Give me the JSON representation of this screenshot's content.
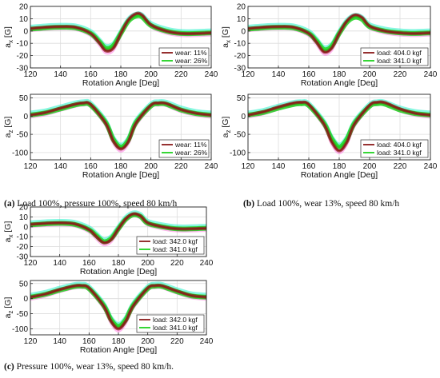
{
  "figure": {
    "captions": [
      {
        "letter": "(a)",
        "text": "Load 100%, pressure 100%, speed 80 km/h"
      },
      {
        "letter": "(b)",
        "text": "Load 100%, wear 13%, speed 80 km/h"
      },
      {
        "letter": "(c)",
        "text": "Pressure 100%, wear 13%, speed 80 km/h."
      }
    ]
  },
  "colors": {
    "dark": "#8b1a1a",
    "green": "#1fd21f",
    "cyan": "#27f0c8",
    "magenta": "#ff4fd8"
  },
  "chart_data": [
    {
      "id": "a-ax",
      "type": "line",
      "xlabel": "Rotation Angle [Deg]",
      "ylabel_main": "a",
      "ylabel_sub": "x",
      "ylabel_unit": "[G]",
      "xlim": [
        120,
        240
      ],
      "ylim": [
        -30,
        20
      ],
      "xticks": [
        120,
        140,
        160,
        180,
        200,
        220,
        240
      ],
      "yticks": [
        -30,
        -20,
        -10,
        0,
        10,
        20
      ],
      "grid": true,
      "legend_position": "bottom-right",
      "series": [
        {
          "name": "wear: 11%",
          "color": "#8b1a1a",
          "x": [
            120,
            130,
            140,
            150,
            160,
            166,
            170,
            175,
            180,
            185,
            190,
            194,
            200,
            210,
            220,
            230,
            240
          ],
          "y": [
            2,
            3,
            3.5,
            3,
            -2,
            -10,
            -16,
            -14,
            -2,
            9,
            14,
            13,
            5,
            0,
            -2,
            -2,
            -1.5
          ]
        },
        {
          "name": "wear: 26%",
          "color": "#1fd21f",
          "x": [
            120,
            130,
            140,
            150,
            160,
            166,
            170,
            175,
            180,
            185,
            190,
            194,
            200,
            210,
            220,
            230,
            240
          ],
          "y": [
            1.5,
            2.5,
            3,
            2.5,
            -2,
            -9,
            -14,
            -12,
            -2,
            8,
            12,
            11.5,
            4.5,
            0,
            -2,
            -2,
            -1.5
          ]
        }
      ]
    },
    {
      "id": "a-az",
      "type": "line",
      "xlabel": "Rotation Angle [Deg]",
      "ylabel_main": "a",
      "ylabel_sub": "z",
      "ylabel_unit": "[G]",
      "xlim": [
        120,
        240
      ],
      "ylim": [
        -120,
        60
      ],
      "xticks": [
        120,
        140,
        160,
        180,
        200,
        220,
        240
      ],
      "yticks": [
        -100,
        -50,
        0,
        50
      ],
      "grid": true,
      "legend_position": "bottom-right",
      "series": [
        {
          "name": "wear: 11%",
          "color": "#8b1a1a",
          "x": [
            120,
            130,
            140,
            150,
            155,
            160,
            170,
            175,
            180,
            185,
            190,
            200,
            205,
            210,
            220,
            230,
            240
          ],
          "y": [
            3,
            10,
            22,
            33,
            36,
            32,
            -20,
            -68,
            -90,
            -70,
            -20,
            30,
            36,
            35,
            18,
            8,
            3
          ]
        },
        {
          "name": "wear: 26%",
          "color": "#1fd21f",
          "x": [
            120,
            130,
            140,
            150,
            155,
            160,
            170,
            175,
            180,
            185,
            190,
            200,
            205,
            210,
            220,
            230,
            240
          ],
          "y": [
            3,
            9,
            20,
            31,
            34,
            30,
            -18,
            -64,
            -85,
            -66,
            -18,
            28,
            34,
            33,
            17,
            7,
            3
          ]
        }
      ]
    },
    {
      "id": "b-ax",
      "type": "line",
      "xlabel": "Rotation Angle [Deg]",
      "ylabel_main": "a",
      "ylabel_sub": "x",
      "ylabel_unit": "[G]",
      "xlim": [
        120,
        240
      ],
      "ylim": [
        -30,
        20
      ],
      "xticks": [
        120,
        140,
        160,
        180,
        200,
        220,
        240
      ],
      "yticks": [
        -30,
        -20,
        -10,
        0,
        10,
        20
      ],
      "grid": true,
      "legend_position": "bottom-right",
      "series": [
        {
          "name": "load: 404.0 kgf",
          "color": "#8b1a1a",
          "x": [
            120,
            130,
            140,
            150,
            160,
            165,
            170,
            175,
            180,
            185,
            190,
            195,
            200,
            210,
            220,
            230,
            240
          ],
          "y": [
            2,
            3,
            3.5,
            3,
            -2,
            -9,
            -17,
            -14,
            -2,
            8,
            13,
            11,
            4,
            0,
            -1.5,
            -2,
            -1.5
          ]
        },
        {
          "name": "load: 341.0 kgf",
          "color": "#1fd21f",
          "x": [
            120,
            130,
            140,
            150,
            160,
            165,
            170,
            175,
            180,
            185,
            190,
            195,
            200,
            210,
            220,
            230,
            240
          ],
          "y": [
            1.5,
            2.5,
            3,
            2.5,
            -2,
            -8,
            -15,
            -12.5,
            -2,
            7,
            11,
            9.5,
            3.5,
            0,
            -1.5,
            -2,
            -1.5
          ]
        }
      ]
    },
    {
      "id": "b-az",
      "type": "line",
      "xlabel": "Rotation Angle [Deg]",
      "ylabel_main": "a",
      "ylabel_sub": "z",
      "ylabel_unit": "[G]",
      "xlim": [
        120,
        240
      ],
      "ylim": [
        -120,
        60
      ],
      "xticks": [
        120,
        140,
        160,
        180,
        200,
        220,
        240
      ],
      "yticks": [
        -100,
        -50,
        0,
        50
      ],
      "grid": true,
      "legend_position": "bottom-right",
      "series": [
        {
          "name": "load: 404.0 kgf",
          "color": "#8b1a1a",
          "x": [
            120,
            130,
            140,
            150,
            155,
            160,
            170,
            175,
            180,
            185,
            190,
            200,
            205,
            210,
            220,
            230,
            240
          ],
          "y": [
            3,
            12,
            25,
            36,
            38,
            32,
            -22,
            -70,
            -95,
            -72,
            -22,
            30,
            38,
            37,
            20,
            8,
            3
          ]
        },
        {
          "name": "load: 341.0 kgf",
          "color": "#1fd21f",
          "x": [
            120,
            130,
            140,
            150,
            155,
            160,
            170,
            175,
            180,
            185,
            190,
            200,
            205,
            210,
            220,
            230,
            240
          ],
          "y": [
            3,
            10,
            22,
            32,
            34,
            29,
            -20,
            -62,
            -85,
            -64,
            -20,
            27,
            34,
            33,
            17,
            7,
            3
          ]
        }
      ]
    },
    {
      "id": "c-ax",
      "type": "line",
      "xlabel": "Rotation Angle [Deg]",
      "ylabel_main": "a",
      "ylabel_sub": "x",
      "ylabel_unit": "[G]",
      "xlim": [
        120,
        240
      ],
      "ylim": [
        -30,
        20
      ],
      "xticks": [
        120,
        140,
        160,
        180,
        200,
        220,
        240
      ],
      "yticks": [
        -30,
        -20,
        -10,
        0,
        10,
        20
      ],
      "grid": true,
      "legend_position": "bottom-right",
      "series": [
        {
          "name": "load: 342.0 kgf",
          "color": "#8b1a1a",
          "x": [
            120,
            130,
            140,
            150,
            160,
            165,
            170,
            175,
            180,
            185,
            190,
            195,
            200,
            210,
            220,
            230,
            240
          ],
          "y": [
            2.5,
            3.5,
            4,
            3,
            -3,
            -10,
            -16,
            -13,
            -2,
            8,
            13,
            11,
            4,
            0,
            -2,
            -2,
            -1.5
          ]
        },
        {
          "name": "load: 341.0 kgf",
          "color": "#1fd21f",
          "x": [
            120,
            130,
            140,
            150,
            160,
            165,
            170,
            175,
            180,
            185,
            190,
            195,
            200,
            210,
            220,
            230,
            240
          ],
          "y": [
            2,
            3,
            3.5,
            2.5,
            -3,
            -9,
            -15,
            -12,
            -2,
            7.5,
            12,
            10.5,
            3.5,
            0,
            -2,
            -2,
            -1.5
          ]
        }
      ]
    },
    {
      "id": "c-az",
      "type": "line",
      "xlabel": "Rotation Angle [Deg]",
      "ylabel_main": "a",
      "ylabel_sub": "z",
      "ylabel_unit": "[G]",
      "xlim": [
        120,
        240
      ],
      "ylim": [
        -120,
        60
      ],
      "xticks": [
        120,
        140,
        160,
        180,
        200,
        220,
        240
      ],
      "yticks": [
        -100,
        -50,
        0,
        50
      ],
      "grid": true,
      "legend_position": "bottom-right",
      "series": [
        {
          "name": "load: 342.0 kgf",
          "color": "#8b1a1a",
          "x": [
            120,
            130,
            140,
            150,
            155,
            160,
            170,
            175,
            180,
            185,
            190,
            200,
            205,
            210,
            220,
            230,
            240
          ],
          "y": [
            5,
            15,
            30,
            42,
            43,
            35,
            -25,
            -75,
            -100,
            -75,
            -25,
            35,
            43,
            42,
            25,
            10,
            5
          ]
        },
        {
          "name": "load: 341.0 kgf",
          "color": "#1fd21f",
          "x": [
            120,
            130,
            140,
            150,
            155,
            160,
            170,
            175,
            180,
            185,
            190,
            200,
            205,
            210,
            220,
            230,
            240
          ],
          "y": [
            5,
            14,
            28,
            40,
            41,
            33,
            -23,
            -70,
            -92,
            -70,
            -23,
            33,
            41,
            40,
            23,
            9,
            5
          ]
        }
      ]
    }
  ]
}
